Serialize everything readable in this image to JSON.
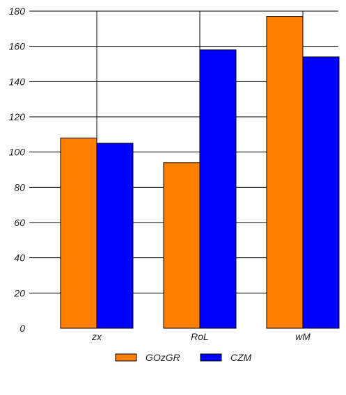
{
  "chart_data": {
    "type": "bar",
    "title": "",
    "xlabel": "",
    "ylabel": "",
    "categories": [
      "zx",
      "RoL",
      "wM"
    ],
    "series": [
      {
        "name": "GOzGR",
        "color": "#ff7f00",
        "values": [
          108,
          94,
          177
        ]
      },
      {
        "name": "CZM",
        "color": "#0000ff",
        "values": [
          105,
          158,
          154
        ]
      }
    ],
    "ylim": [
      0,
      180
    ],
    "yticks": [
      "0",
      "20",
      "40",
      "60",
      "80",
      "100",
      "120",
      "140",
      "160",
      "180"
    ],
    "grid": true,
    "legend": "bottom-center"
  }
}
